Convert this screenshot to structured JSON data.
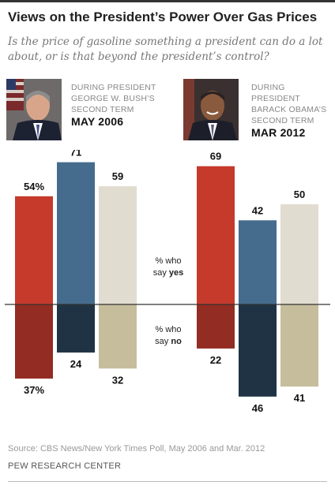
{
  "title": "Views on the President’s Power Over Gas Prices",
  "subtitle": "Is the price of gasoline something a president can do a lot about, or is that beyond the president’s control?",
  "panels": [
    {
      "period_line1": "During President",
      "period_line2": "George W. Bush’s",
      "period_line3": "second term",
      "date": "MAY 2006",
      "photo_icon": "portrait-icon"
    },
    {
      "period_line1": "During President",
      "period_line2": "Barack Obama’s",
      "period_line3": "second term",
      "date": "MAR 2012",
      "photo_icon": "portrait-icon"
    }
  ],
  "center_labels": {
    "yes_line1": "% who",
    "yes_line2": "say",
    "yes_word": "yes",
    "no_line1": "% who",
    "no_line2": "say",
    "no_word": "no"
  },
  "chart_data": {
    "type": "bar",
    "groups": [
      {
        "name": "MAY 2006",
        "bars": [
          {
            "yes": 54,
            "no": 37,
            "yes_label": "54%",
            "no_label": "37%"
          },
          {
            "yes": 71,
            "no": 24,
            "yes_label": "71",
            "no_label": "24"
          },
          {
            "yes": 59,
            "no": 32,
            "yes_label": "59",
            "no_label": "32"
          }
        ]
      },
      {
        "name": "MAR 2012",
        "bars": [
          {
            "yes": 69,
            "no": 22,
            "yes_label": "69",
            "no_label": "22"
          },
          {
            "yes": 42,
            "no": 46,
            "yes_label": "42",
            "no_label": "46"
          },
          {
            "yes": 50,
            "no": 41,
            "yes_label": "50",
            "no_label": "41"
          }
        ]
      }
    ],
    "colors": {
      "yes": [
        "#c63a2c",
        "#456c8d",
        "#e1dcd0"
      ],
      "no": [
        "#932c22",
        "#1f3344",
        "#c6bd9c"
      ]
    }
  },
  "source": "Source: CBS News/New York Times Poll, May 2006 and Mar. 2012",
  "organization": "PEW RESEARCH CENTER"
}
